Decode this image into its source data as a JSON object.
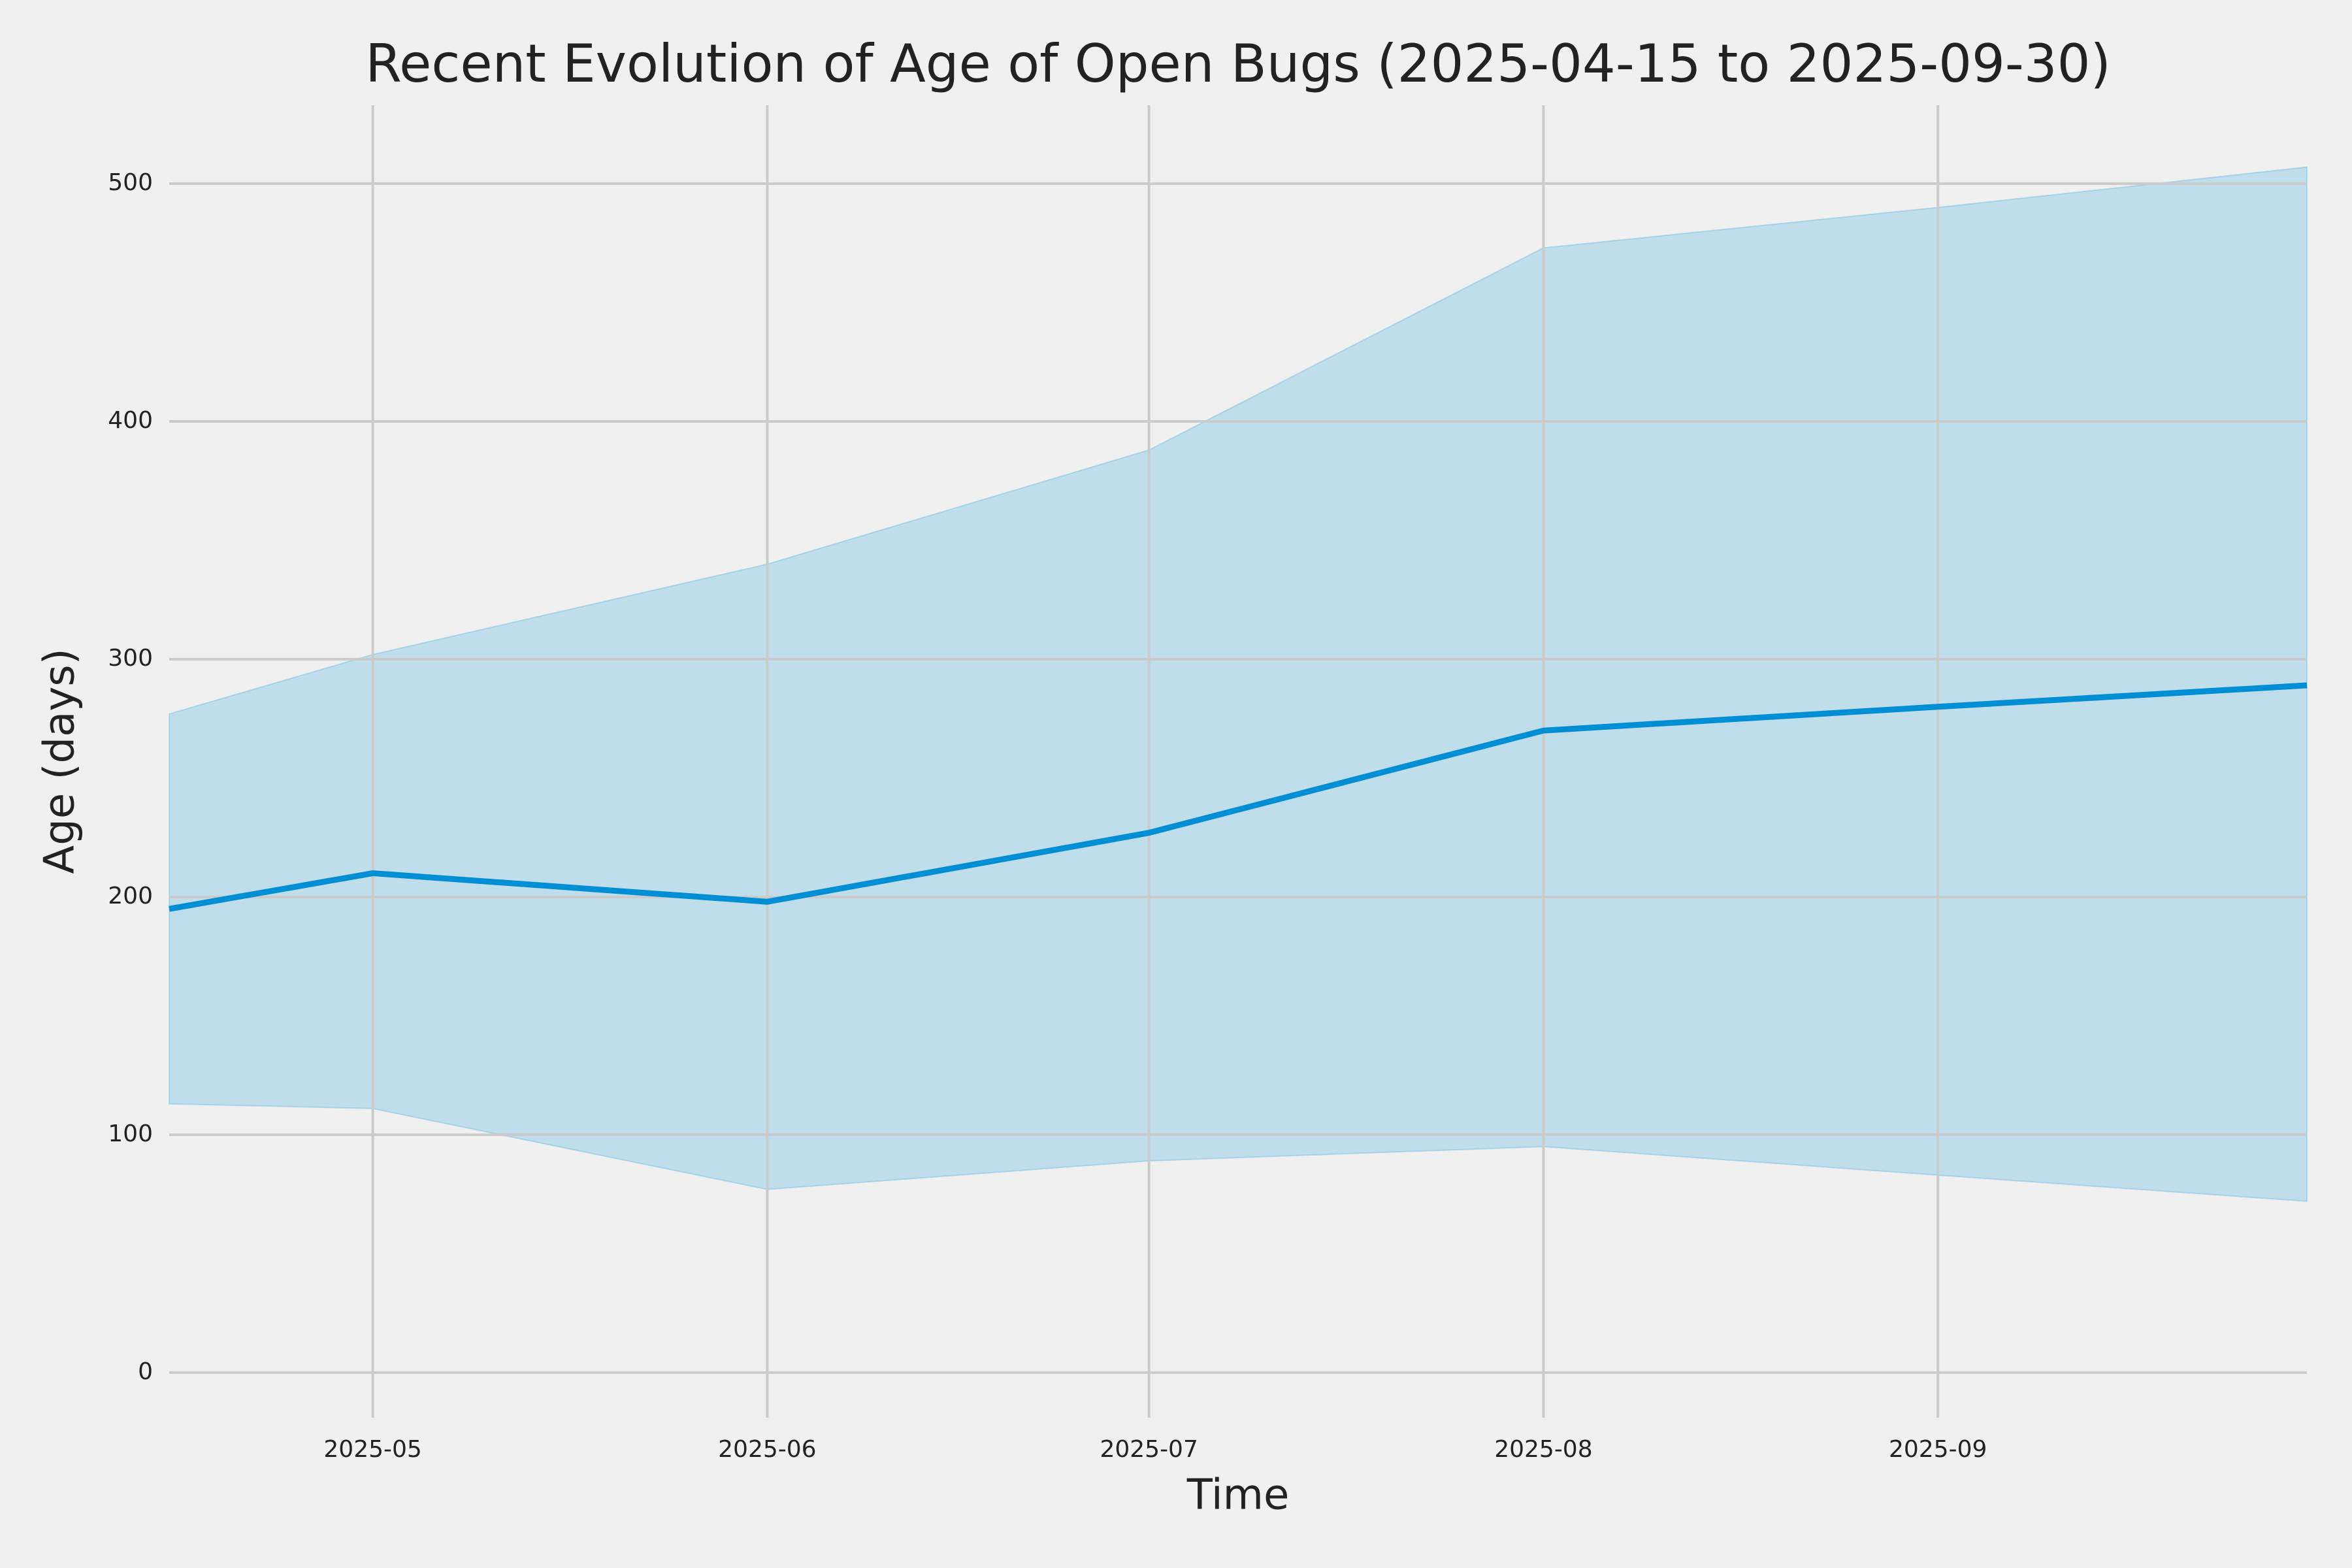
{
  "chart_data": {
    "type": "line",
    "title": "Recent Evolution of Age of Open Bugs (2025-04-15 to 2025-09-30)",
    "x_label": "Time",
    "y_label": "Age (days)",
    "x": [
      "2025-04-15",
      "2025-05",
      "2025-06",
      "2025-07",
      "2025-08",
      "2025-09",
      "2025-09-30"
    ],
    "series": [
      {
        "color": "#008fd5",
        "values": [
          195,
          210,
          198,
          227,
          270,
          280,
          289
        ]
      }
    ],
    "band": {
      "color": "#008fd5",
      "opacity": 0.2,
      "upper": [
        277,
        302,
        340,
        388,
        473,
        490,
        507
      ],
      "lower": [
        113,
        111,
        77,
        89,
        95,
        83,
        72
      ]
    },
    "xlim": [
      "2025-04-15",
      "2025-09-30"
    ],
    "xticks": [
      "2025-05",
      "2025-06",
      "2025-07",
      "2025-08",
      "2025-09"
    ],
    "ylim": [
      -19,
      533
    ],
    "yticks": [
      0,
      100,
      200,
      300,
      400,
      500
    ],
    "grid": true
  }
}
